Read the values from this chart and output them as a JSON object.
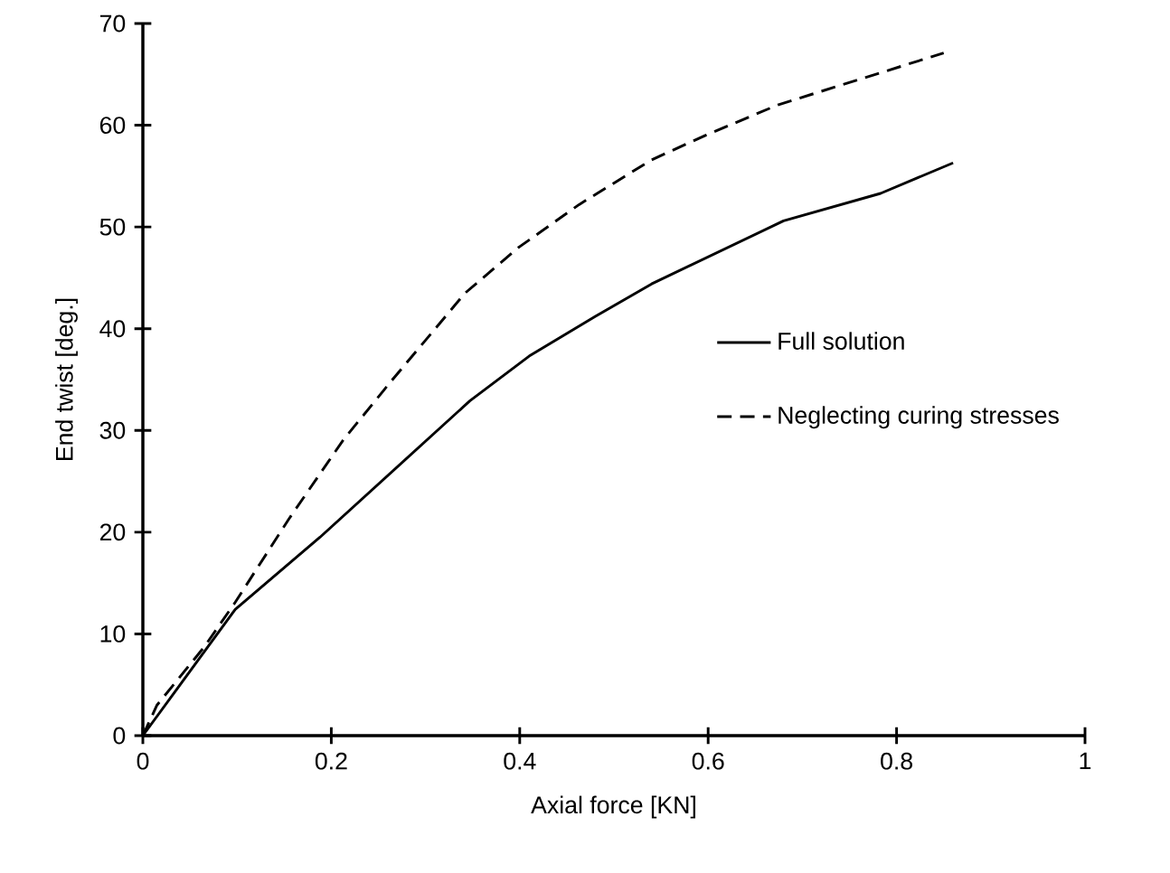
{
  "chart_data": {
    "type": "line",
    "xlabel": "Axial force  [KN]",
    "ylabel": "End twist  [deg.]",
    "xlim": [
      0,
      1
    ],
    "ylim": [
      0,
      70
    ],
    "xticks": [
      0,
      0.2,
      0.4,
      0.6,
      0.8,
      1
    ],
    "yticks": [
      0,
      10,
      20,
      30,
      40,
      50,
      60,
      70
    ],
    "legend": "right",
    "grid": false,
    "marker": "none",
    "series": [
      {
        "name": "Full solution",
        "color": "#000000",
        "line_style": "solid",
        "x": [
          0,
          0.098,
          0.188,
          0.347,
          0.41,
          0.48,
          0.54,
          0.68,
          0.783,
          0.86
        ],
        "values": [
          0,
          12.4,
          19.5,
          32.9,
          37.3,
          41.2,
          44.4,
          50.6,
          53.3,
          56.3
        ]
      },
      {
        "name": "Neglecting curing stresses",
        "color": "#000000",
        "line_style": "dashed",
        "x": [
          0,
          0.015,
          0.065,
          0.098,
          0.155,
          0.213,
          0.265,
          0.342,
          0.399,
          0.463,
          0.54,
          0.597,
          0.674,
          0.85
        ],
        "values": [
          0,
          3,
          8.7,
          13.1,
          21.3,
          29.1,
          35,
          43.5,
          48,
          52.2,
          56.6,
          59,
          62,
          67.1
        ]
      }
    ]
  }
}
